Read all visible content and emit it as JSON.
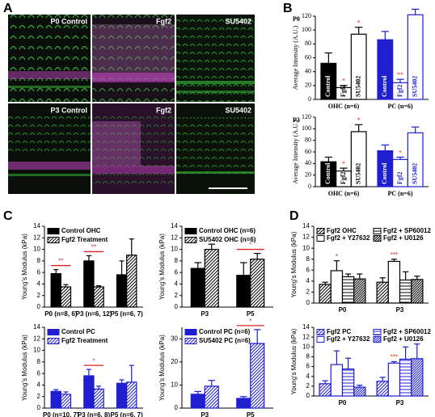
{
  "panel_labels": [
    "A",
    "B",
    "C",
    "D"
  ],
  "images": [
    {
      "label": "P0 Control"
    },
    {
      "label": "Fgf2"
    },
    {
      "label": "SU5402"
    },
    {
      "label": "P3 Control"
    },
    {
      "label": "Fgf2"
    },
    {
      "label": "SU5402"
    }
  ],
  "chart_data": [
    {
      "type": "bar",
      "title": "P0",
      "ylabel": "Average Intensity (A.U.)",
      "ylim": [
        0,
        120
      ],
      "yticks": [
        0,
        20,
        40,
        60,
        80,
        100,
        120
      ],
      "categories": [
        "OHC (n=6)",
        "PC (n=6)"
      ],
      "category_colors": [
        "#000000",
        "#1f1fd0"
      ],
      "legend": "inside-bars",
      "series": [
        {
          "name": "Control",
          "pattern": "solid",
          "values": [
            52,
            86
          ],
          "errors": [
            15,
            12
          ],
          "sig": [
            null,
            null
          ]
        },
        {
          "name": "Fgf2",
          "pattern": "hollow",
          "values": [
            17,
            24
          ],
          "errors": [
            3,
            5
          ],
          "sig": [
            "*",
            "**"
          ]
        },
        {
          "name": "SU5402",
          "pattern": "hollow",
          "values": [
            94,
            122
          ],
          "errors": [
            10,
            8
          ],
          "sig": [
            "*",
            null
          ]
        }
      ]
    },
    {
      "type": "bar",
      "title": "P3",
      "ylabel": "Average Intensity (A.U.)",
      "ylim": [
        0,
        120
      ],
      "yticks": [
        0,
        20,
        40,
        60,
        80,
        100,
        120
      ],
      "categories": [
        "OHC (n=6)",
        "PC (n=6)"
      ],
      "category_colors": [
        "#000000",
        "#1f1fd0"
      ],
      "legend": "inside-bars",
      "series": [
        {
          "name": "Control",
          "pattern": "solid",
          "values": [
            43,
            62
          ],
          "errors": [
            8,
            10
          ],
          "sig": [
            null,
            null
          ]
        },
        {
          "name": "Fgf2",
          "pattern": "hollow",
          "values": [
            27,
            47
          ],
          "errors": [
            5,
            4
          ],
          "sig": [
            "*",
            "*"
          ]
        },
        {
          "name": "SU5402",
          "pattern": "hollow",
          "values": [
            95,
            93
          ],
          "errors": [
            12,
            10
          ],
          "sig": [
            "*",
            null
          ]
        }
      ]
    },
    {
      "type": "bar",
      "ylabel": "Young's Modulus (kPa)",
      "ylim": [
        0,
        14
      ],
      "yticks": [
        0,
        2,
        4,
        6,
        8,
        10,
        12,
        14
      ],
      "categories": [
        "P0 (n=8, 6)",
        "P3 (n=6, 12)",
        "P5 (n=6, 7)"
      ],
      "legend": "upper-left",
      "brackets": [
        "**",
        "**",
        null
      ],
      "series": [
        {
          "name": "Control OHC",
          "color": "#000000",
          "pattern": "solid",
          "values": [
            5.8,
            8,
            5.6
          ],
          "errors": [
            0.7,
            0.9,
            2.4
          ]
        },
        {
          "name": "Fgf2 Treatment",
          "color": "#000000",
          "pattern": "hatch",
          "values": [
            3.5,
            3.5,
            9
          ],
          "errors": [
            0.4,
            0.2,
            2.8
          ]
        }
      ]
    },
    {
      "type": "bar",
      "ylabel": "Young's Modulus (kPa)",
      "ylim": [
        0,
        14
      ],
      "yticks": [
        0,
        2,
        4,
        6,
        8,
        10,
        12,
        14
      ],
      "categories": [
        "P3",
        "P5"
      ],
      "legend": "upper-left",
      "brackets": [
        null,
        "*"
      ],
      "series": [
        {
          "name": "Control OHC (n=6)",
          "color": "#000000",
          "pattern": "solid",
          "values": [
            6.7,
            5.5
          ],
          "errors": [
            1,
            2.2
          ]
        },
        {
          "name": "SU5402 OHC (n=6)",
          "color": "#000000",
          "pattern": "hatch",
          "values": [
            10,
            8.3
          ],
          "errors": [
            0.9,
            1
          ]
        }
      ]
    },
    {
      "type": "bar",
      "ylabel": "Young's Modulus (kPa)",
      "ylim": [
        0,
        14
      ],
      "yticks": [
        0,
        2,
        4,
        6,
        8,
        10,
        12,
        14
      ],
      "categories": [
        "P0 (n=10, 7)",
        "P3 (n=6, 8)",
        "P5 (n=6, 7)"
      ],
      "legend": "upper-left",
      "brackets": [
        null,
        "*",
        null
      ],
      "series": [
        {
          "name": "Control PC",
          "color": "#1f1fd0",
          "pattern": "solid",
          "values": [
            2.9,
            5.6,
            4.3
          ],
          "errors": [
            0.3,
            1.1,
            0.6
          ]
        },
        {
          "name": "Fgf2 Treatment",
          "color": "#1f1fd0",
          "pattern": "hatch",
          "values": [
            2.4,
            3.3,
            4.5
          ],
          "errors": [
            0.4,
            0.5,
            2.9
          ]
        }
      ]
    },
    {
      "type": "bar",
      "ylabel": "Young's Modulus (kPa)",
      "ylim": [
        0,
        35
      ],
      "yticks": [
        0,
        10,
        20,
        30
      ],
      "categories": [
        "P3",
        "P5"
      ],
      "legend": "upper-left",
      "brackets": [
        null,
        "*"
      ],
      "series": [
        {
          "name": "Control PC (n=6)",
          "color": "#1f1fd0",
          "pattern": "solid",
          "values": [
            6,
            4.2
          ],
          "errors": [
            1.2,
            0.8
          ]
        },
        {
          "name": "SU5402 PC (n=6)",
          "color": "#1f1fd0",
          "pattern": "hatch",
          "values": [
            9.5,
            28
          ],
          "errors": [
            2.5,
            6
          ]
        }
      ]
    },
    {
      "type": "bar",
      "ylabel": "Young's Modulus (kPa)",
      "ylim": [
        0,
        14
      ],
      "yticks": [
        0,
        2,
        4,
        6,
        8,
        10,
        12,
        14
      ],
      "categories": [
        "P0",
        "P3"
      ],
      "legend": "top-two-column",
      "series": [
        {
          "name": "Fgf2 OHC",
          "color": "#000000",
          "pattern": "hatch",
          "values": [
            3.4,
            3.8
          ],
          "errors": [
            0.4,
            0.8
          ],
          "sig": [
            null,
            null
          ]
        },
        {
          "name": "Fgf2 + Y27632",
          "color": "#000000",
          "pattern": "hollow",
          "values": [
            5.9,
            7.6
          ],
          "errors": [
            1.8,
            0.4
          ],
          "sig": [
            "*",
            "***"
          ]
        },
        {
          "name": "Fgf2 + SP60012",
          "color": "#000000",
          "pattern": "hatch-h",
          "values": [
            4.8,
            4.2
          ],
          "errors": [
            0.5,
            1.5
          ],
          "sig": [
            null,
            null
          ]
        },
        {
          "name": "Fgf2 + U0126",
          "color": "#000000",
          "pattern": "hatch-dense",
          "values": [
            4.4,
            4.3
          ],
          "errors": [
            0.9,
            0.6
          ],
          "sig": [
            null,
            null
          ]
        }
      ]
    },
    {
      "type": "bar",
      "ylabel": "Young's Modulus (kPa)",
      "ylim": [
        0,
        14
      ],
      "yticks": [
        0,
        2,
        4,
        6,
        8,
        10,
        12,
        14
      ],
      "categories": [
        "P0",
        "P3"
      ],
      "legend": "top-two-column",
      "series": [
        {
          "name": "Fgf2 PC",
          "color": "#1f1fd0",
          "pattern": "hatch",
          "values": [
            2.5,
            3
          ],
          "errors": [
            0.6,
            0.8
          ],
          "sig": [
            null,
            null
          ]
        },
        {
          "name": "Fgf2 + Y27632",
          "color": "#1f1fd0",
          "pattern": "hollow",
          "values": [
            6.4,
            6.7
          ],
          "errors": [
            2.8,
            0.3
          ],
          "sig": [
            null,
            "***"
          ]
        },
        {
          "name": "Fgf2 + SP60012",
          "color": "#1f1fd0",
          "pattern": "hatch-h",
          "values": [
            5.5,
            7.5
          ],
          "errors": [
            2.2,
            2.5
          ],
          "sig": [
            null,
            null
          ]
        },
        {
          "name": "Fgf2 + U0126",
          "color": "#1f1fd0",
          "pattern": "hatch-dense",
          "values": [
            1.8,
            7.6
          ],
          "errors": [
            0.4,
            3
          ],
          "sig": [
            null,
            null
          ]
        }
      ]
    }
  ]
}
